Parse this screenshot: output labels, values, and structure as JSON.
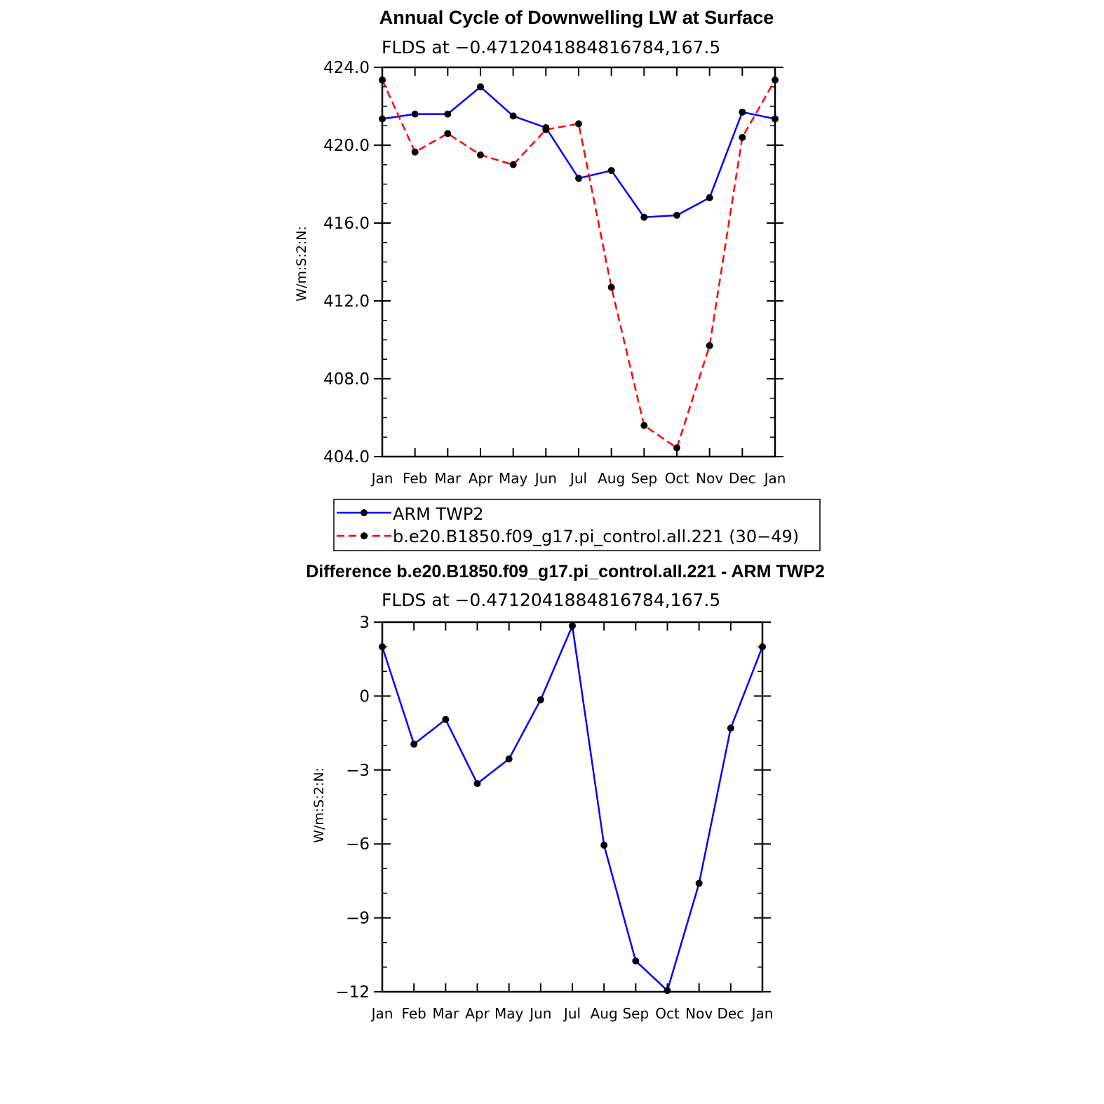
{
  "chart_data": [
    {
      "type": "line",
      "title": "Annual Cycle of Downwelling LW at Surface",
      "subtitle": "FLDS at −0.4712041884816784,167.5",
      "xlabel": "",
      "ylabel": "W/m:S:2:N:",
      "categories": [
        "Jan",
        "Feb",
        "Mar",
        "Apr",
        "May",
        "Jun",
        "Jul",
        "Aug",
        "Sep",
        "Oct",
        "Nov",
        "Dec",
        "Jan"
      ],
      "ylim": [
        404,
        424
      ],
      "yticks": [
        404,
        408,
        412,
        416,
        420,
        424
      ],
      "ytick_labels": [
        "404.0",
        "408.0",
        "412.0",
        "416.0",
        "420.0",
        "424.0"
      ],
      "grid": false,
      "legend_position": "bottom",
      "series": [
        {
          "name": "ARM TWP2",
          "color": "#0000ff",
          "style": "solid",
          "values": [
            421.35,
            421.6,
            421.6,
            423.0,
            421.5,
            420.9,
            418.3,
            418.7,
            416.3,
            416.4,
            417.3,
            421.7,
            421.35
          ]
        },
        {
          "name": "b.e20.B1850.f09_g17.pi_control.all.221 (30−49)",
          "color": "#ff0000",
          "style": "dashed",
          "values": [
            423.35,
            419.65,
            420.6,
            419.5,
            419.0,
            420.8,
            421.1,
            412.7,
            405.6,
            404.45,
            409.7,
            420.4,
            423.35
          ]
        }
      ]
    },
    {
      "type": "line",
      "title": "Difference b.e20.B1850.f09_g17.pi_control.all.221 - ARM TWP2",
      "subtitle": "FLDS at −0.4712041884816784,167.5",
      "xlabel": "",
      "ylabel": "W/m:S:2:N:",
      "categories": [
        "Jan",
        "Feb",
        "Mar",
        "Apr",
        "May",
        "Jun",
        "Jul",
        "Aug",
        "Sep",
        "Oct",
        "Nov",
        "Dec",
        "Jan"
      ],
      "ylim": [
        -12,
        3
      ],
      "yticks": [
        -12,
        -9,
        -6,
        -3,
        0,
        3
      ],
      "ytick_labels": [
        "−12",
        "−9",
        "−6",
        "−3",
        "0",
        "3"
      ],
      "grid": false,
      "series": [
        {
          "color": "#0000ff",
          "style": "solid",
          "values": [
            2.0,
            -1.95,
            -0.95,
            -3.55,
            -2.55,
            -0.15,
            2.85,
            -6.05,
            -10.75,
            -11.95,
            -7.6,
            -1.3,
            2.0
          ]
        }
      ]
    }
  ],
  "marker_color": "#000000"
}
